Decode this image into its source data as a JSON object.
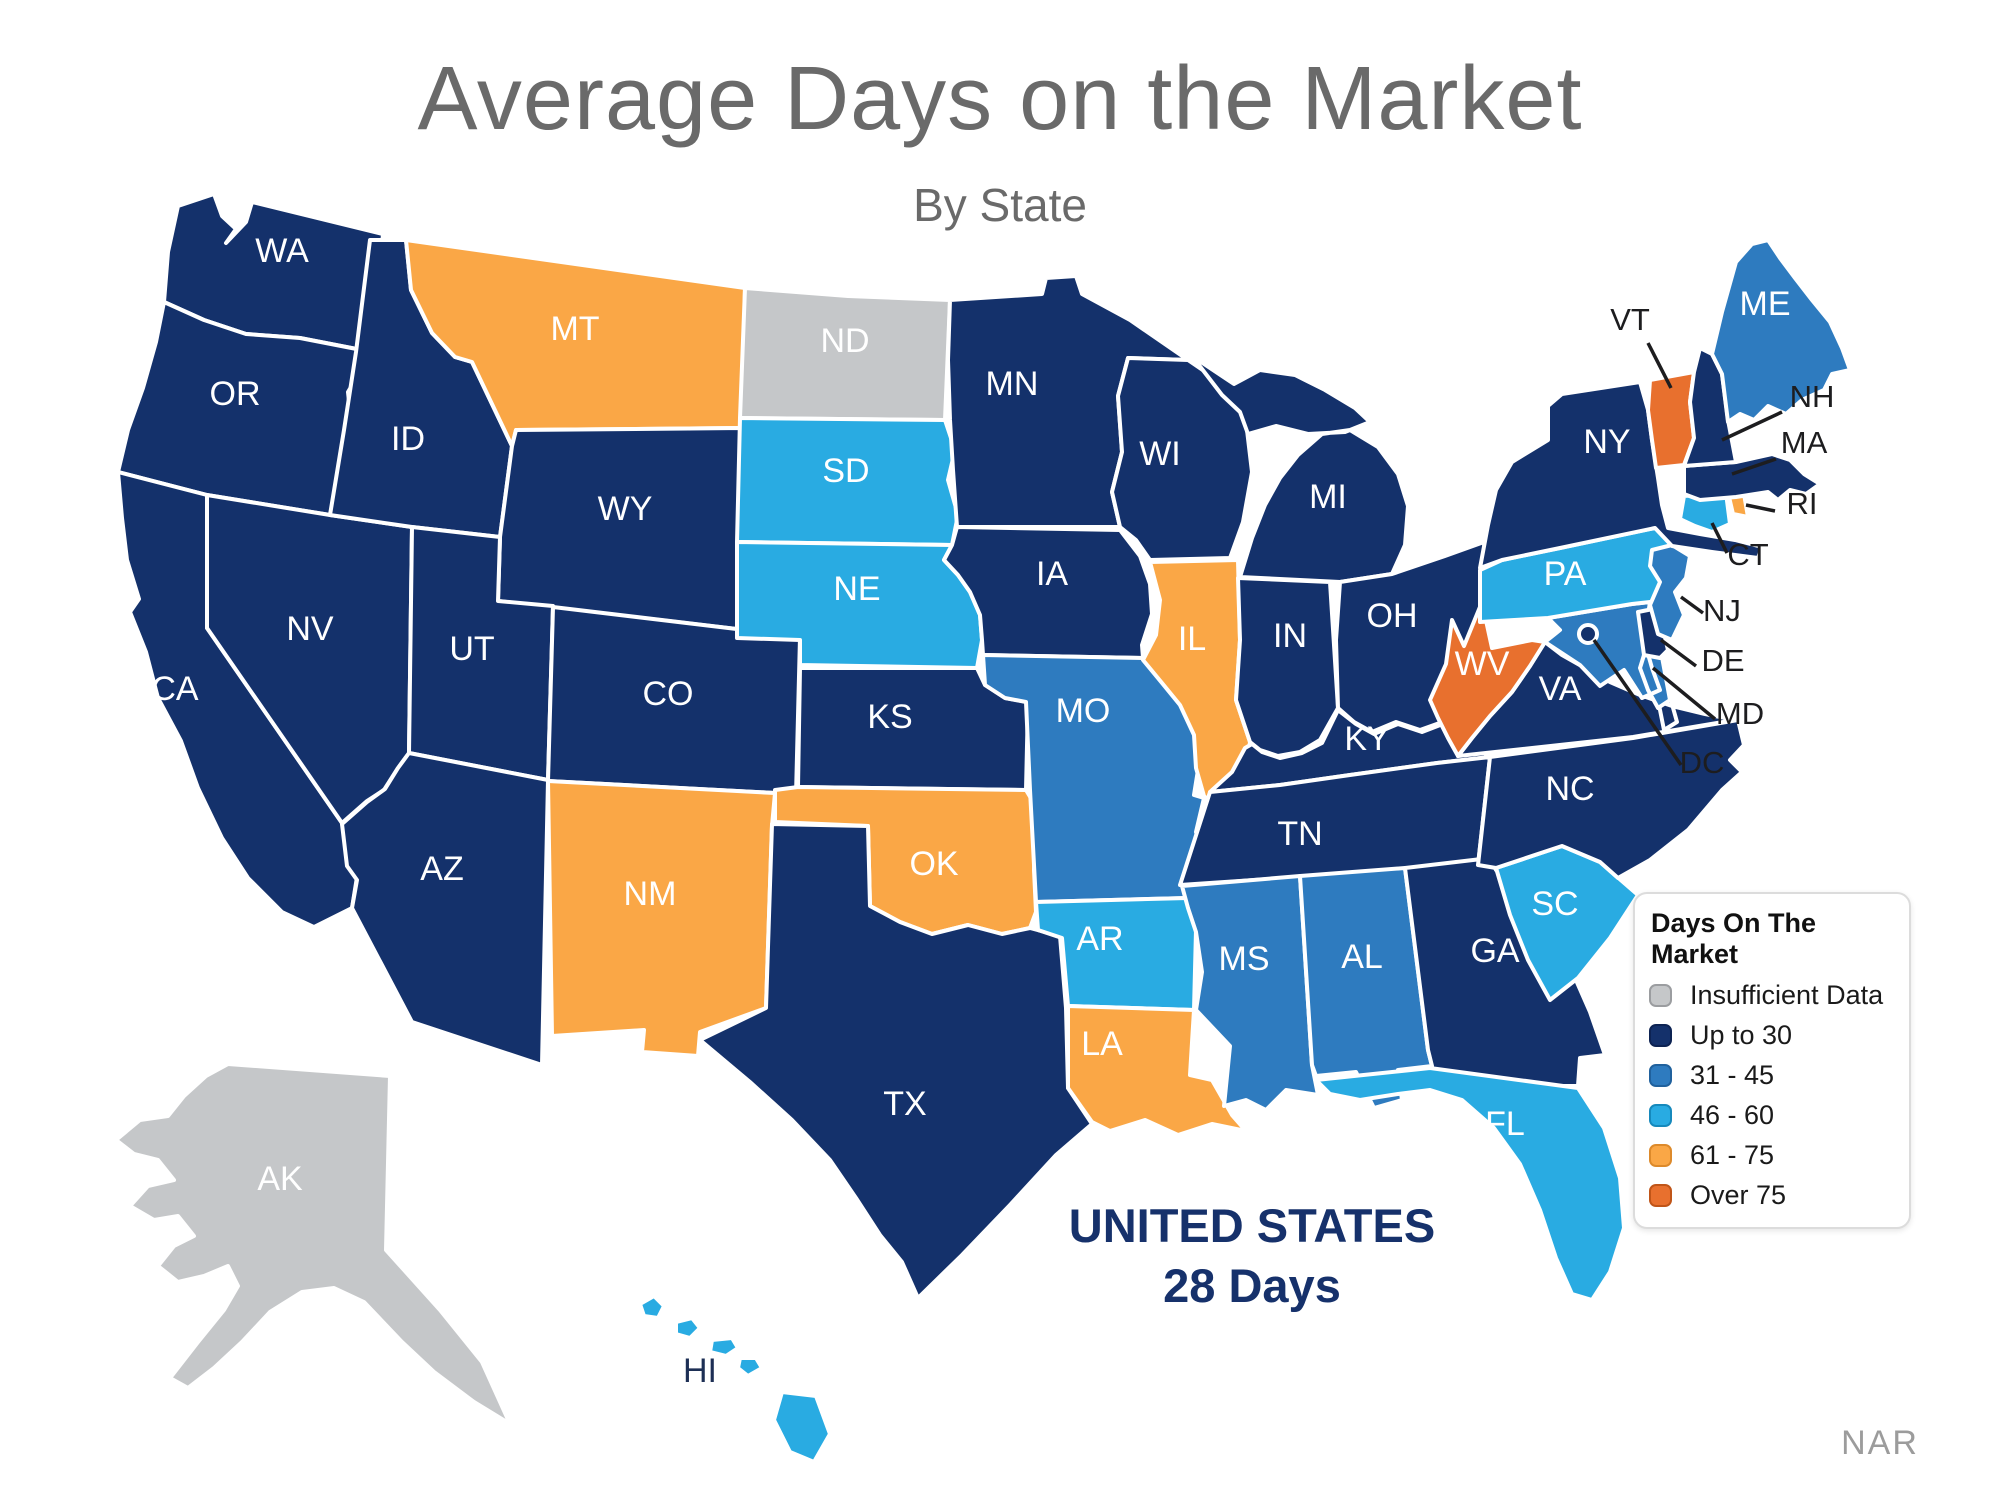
{
  "title": "Average Days on the Market",
  "subtitle": "By State",
  "summary": {
    "line1": "UNITED STATES",
    "line2": "28 Days"
  },
  "source": "NAR",
  "colors": {
    "title_text": "#6a6a6a",
    "summary_text": "#16316B",
    "source_text": "#9c9c9c",
    "state_label_text": "#ffffff",
    "callout_text": "#1d1d1f",
    "map_border": "#ffffff"
  },
  "legend": {
    "title": "Days On The Market",
    "items": [
      {
        "key": "insufficient",
        "label": "Insufficient Data",
        "color": "#C5C7C9",
        "border": "#9B9DA0"
      },
      {
        "key": "upto30",
        "label": "Up to 30",
        "color": "#14316B",
        "border": "#0D2353"
      },
      {
        "key": "b31_45",
        "label": "31 - 45",
        "color": "#2E7BBF",
        "border": "#20619D"
      },
      {
        "key": "b46_60",
        "label": "46 - 60",
        "color": "#29ABE2",
        "border": "#1689BC"
      },
      {
        "key": "b61_75",
        "label": "61 - 75",
        "color": "#FAA746",
        "border": "#DD8A2B"
      },
      {
        "key": "over75",
        "label": "Over 75",
        "color": "#E8702E",
        "border": "#C05518"
      }
    ]
  },
  "map": {
    "states": [
      {
        "abbr": "WA",
        "category": "upto30"
      },
      {
        "abbr": "OR",
        "category": "upto30"
      },
      {
        "abbr": "CA",
        "category": "upto30"
      },
      {
        "abbr": "NV",
        "category": "upto30"
      },
      {
        "abbr": "ID",
        "category": "upto30"
      },
      {
        "abbr": "MT",
        "category": "b61_75"
      },
      {
        "abbr": "WY",
        "category": "upto30"
      },
      {
        "abbr": "UT",
        "category": "upto30"
      },
      {
        "abbr": "CO",
        "category": "upto30"
      },
      {
        "abbr": "AZ",
        "category": "upto30"
      },
      {
        "abbr": "NM",
        "category": "b61_75"
      },
      {
        "abbr": "ND",
        "category": "insufficient"
      },
      {
        "abbr": "SD",
        "category": "b46_60"
      },
      {
        "abbr": "NE",
        "category": "b46_60"
      },
      {
        "abbr": "KS",
        "category": "upto30"
      },
      {
        "abbr": "OK",
        "category": "b61_75"
      },
      {
        "abbr": "TX",
        "category": "upto30"
      },
      {
        "abbr": "MN",
        "category": "upto30"
      },
      {
        "abbr": "IA",
        "category": "upto30"
      },
      {
        "abbr": "MO",
        "category": "b31_45"
      },
      {
        "abbr": "AR",
        "category": "b46_60"
      },
      {
        "abbr": "LA",
        "category": "b61_75"
      },
      {
        "abbr": "WI",
        "category": "upto30"
      },
      {
        "abbr": "IL",
        "category": "b61_75"
      },
      {
        "abbr": "IN",
        "category": "upto30"
      },
      {
        "abbr": "MI",
        "category": "upto30"
      },
      {
        "abbr": "OH",
        "category": "upto30"
      },
      {
        "abbr": "KY",
        "category": "upto30"
      },
      {
        "abbr": "TN",
        "category": "upto30"
      },
      {
        "abbr": "MS",
        "category": "b31_45"
      },
      {
        "abbr": "AL",
        "category": "b31_45"
      },
      {
        "abbr": "GA",
        "category": "upto30"
      },
      {
        "abbr": "FL",
        "category": "b46_60"
      },
      {
        "abbr": "SC",
        "category": "b46_60"
      },
      {
        "abbr": "NC",
        "category": "upto30"
      },
      {
        "abbr": "VA",
        "category": "upto30"
      },
      {
        "abbr": "WV",
        "category": "over75"
      },
      {
        "abbr": "MD",
        "category": "b31_45"
      },
      {
        "abbr": "DE",
        "category": "upto30"
      },
      {
        "abbr": "PA",
        "category": "b46_60"
      },
      {
        "abbr": "NJ",
        "category": "b31_45"
      },
      {
        "abbr": "NY",
        "category": "upto30"
      },
      {
        "abbr": "CT",
        "category": "b46_60"
      },
      {
        "abbr": "RI",
        "category": "b61_75"
      },
      {
        "abbr": "MA",
        "category": "upto30"
      },
      {
        "abbr": "VT",
        "category": "over75"
      },
      {
        "abbr": "NH",
        "category": "upto30"
      },
      {
        "abbr": "ME",
        "category": "b31_45"
      },
      {
        "abbr": "AK",
        "category": "insufficient"
      },
      {
        "abbr": "HI",
        "category": "b46_60"
      },
      {
        "abbr": "DC",
        "category": "upto30"
      }
    ],
    "callout_labels": [
      "VT",
      "NH",
      "MA",
      "RI",
      "CT",
      "NJ",
      "DE",
      "MD",
      "DC"
    ]
  }
}
